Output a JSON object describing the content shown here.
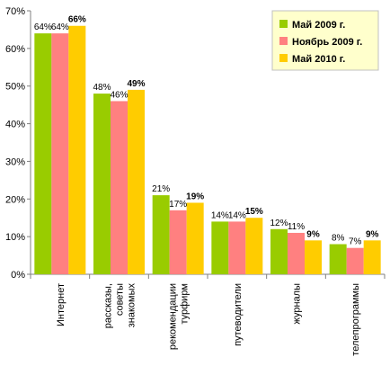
{
  "chart_data": {
    "type": "bar",
    "title": "",
    "xlabel": "",
    "ylabel": "",
    "ylim": [
      0,
      70
    ],
    "yticks": [
      0,
      10,
      20,
      30,
      40,
      50,
      60,
      70
    ],
    "ytick_suffix": "%",
    "grid": false,
    "legend_position": "top-right",
    "categories": [
      [
        "Интернет"
      ],
      [
        "рассказы,",
        "советы",
        "знакомых"
      ],
      [
        "рекомендации",
        "турфирм"
      ],
      [
        "путеводители"
      ],
      [
        "журналы"
      ],
      [
        "телепрограммы"
      ]
    ],
    "series": [
      {
        "name": "Май 2009 г.",
        "color": "#99CC00",
        "bold_labels": false,
        "values": [
          64,
          48,
          21,
          14,
          12,
          8
        ]
      },
      {
        "name": "Ноябрь 2009 г.",
        "color": "#FF8080",
        "bold_labels": false,
        "values": [
          64,
          46,
          17,
          14,
          11,
          7
        ]
      },
      {
        "name": "Май 2010 г.",
        "color": "#FFCC00",
        "bold_labels": true,
        "values": [
          66,
          49,
          19,
          15,
          9,
          9
        ]
      }
    ],
    "data_label_suffix": "%"
  },
  "colors": {
    "legend_bg": "#FFFFCC",
    "axis": "#808080",
    "text": "#000000"
  }
}
